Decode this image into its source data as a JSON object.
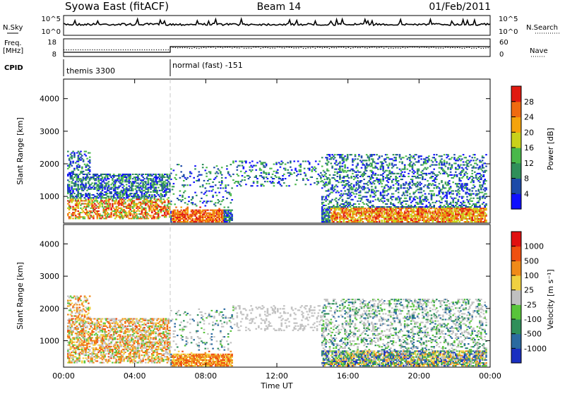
{
  "header": {
    "station": "Syowa East (fitACF)",
    "beam": "Beam 14",
    "date": "01/Feb/2011"
  },
  "top_panels": {
    "nsky": {
      "label": "N.Sky",
      "ticks": [
        "10^5",
        "10^0"
      ]
    },
    "nsearch": {
      "label": "N.Search",
      "ticks": [
        "10^5",
        "10^0"
      ]
    },
    "freq": {
      "label_line1": "Freq.",
      "label_line2": "[MHz]",
      "ticks": [
        "18",
        "8"
      ]
    },
    "nave": {
      "label": "Nave",
      "ticks": [
        "60",
        "0"
      ]
    },
    "cpid": {
      "label": "CPID",
      "segments": [
        {
          "name": "themis 3300",
          "start_hour": 0,
          "end_hour": 6
        },
        {
          "name": "normal (fast) -151",
          "start_hour": 6,
          "end_hour": 24
        }
      ]
    }
  },
  "chart_data": [
    {
      "type": "heatmap",
      "name": "power",
      "ylabel": "Slant Range [km]",
      "yticks": [
        "1000",
        "2000",
        "3000",
        "4000"
      ],
      "ylim": [
        180,
        4600
      ],
      "xlim": [
        0,
        24
      ],
      "colorbar": {
        "label": "Power [dB]",
        "ticks": [
          "4",
          "8",
          "12",
          "16",
          "20",
          "24",
          "28"
        ],
        "colors": [
          "#1010ff",
          "#1c4aa8",
          "#2f8f5a",
          "#49b84a",
          "#c9d11a",
          "#f4a30c",
          "#ef6a10",
          "#e01a10"
        ]
      }
    },
    {
      "type": "heatmap",
      "name": "velocity",
      "ylabel": "Slant Range [km]",
      "yticks": [
        "1000",
        "2000",
        "3000",
        "4000"
      ],
      "ylim": [
        180,
        4600
      ],
      "xlim": [
        0,
        24
      ],
      "xticks": [
        "00:00",
        "04:00",
        "08:00",
        "12:00",
        "16:00",
        "20:00",
        "00:00"
      ],
      "xlabel": "Time UT",
      "colorbar": {
        "label": "Velocity [m s⁻¹]",
        "ticks": [
          "1000",
          "500",
          "100",
          "25",
          "-25",
          "-100",
          "-500",
          "-1000"
        ],
        "colors": [
          "#1a2fc0",
          "#2b6aa0",
          "#2f8f5a",
          "#58c43a",
          "#c0c0c0",
          "#f0d040",
          "#f08a18",
          "#ef5010",
          "#e01010"
        ]
      }
    }
  ]
}
